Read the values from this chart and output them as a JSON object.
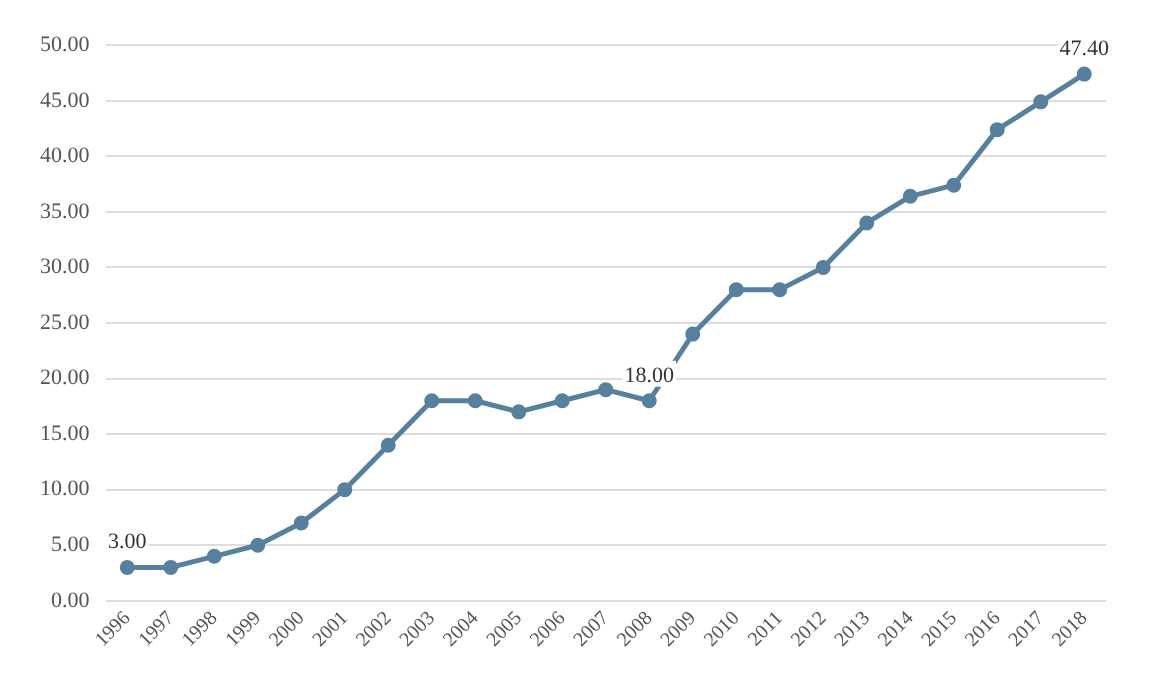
{
  "chart_data": {
    "type": "line",
    "categories": [
      "1996",
      "1997",
      "1998",
      "1999",
      "2000",
      "2001",
      "2002",
      "2003",
      "2004",
      "2005",
      "2006",
      "2007",
      "2008",
      "2009",
      "2010",
      "2011",
      "2012",
      "2013",
      "2014",
      "2015",
      "2016",
      "2017",
      "2018"
    ],
    "series": [
      {
        "color": "#56809e",
        "values": [
          3,
          3,
          4,
          5,
          7,
          10,
          14,
          18,
          18,
          17,
          18,
          19,
          18,
          24,
          28,
          28,
          30,
          34,
          36.4,
          37.4,
          42.4,
          44.9,
          47.4
        ],
        "value_labels": [
          "3.00",
          null,
          null,
          null,
          null,
          null,
          null,
          null,
          null,
          null,
          null,
          null,
          "18.00",
          null,
          null,
          null,
          null,
          null,
          null,
          null,
          null,
          null,
          "47.40"
        ]
      }
    ],
    "ylim": [
      0,
      50
    ],
    "yticks": [
      {
        "value": 0,
        "label": "0.00"
      },
      {
        "value": 5,
        "label": "5.00"
      },
      {
        "value": 10,
        "label": "10.00"
      },
      {
        "value": 15,
        "label": "15.00"
      },
      {
        "value": 20,
        "label": "20.00"
      },
      {
        "value": 25,
        "label": "25.00"
      },
      {
        "value": 30,
        "label": "30.00"
      },
      {
        "value": 35,
        "label": "35.00"
      },
      {
        "value": 40,
        "label": "40.00"
      },
      {
        "value": 45,
        "label": "45.00"
      },
      {
        "value": 50,
        "label": "50.00"
      }
    ],
    "grid": "y",
    "legend": false,
    "marker": "circle",
    "line_style": "solid"
  }
}
